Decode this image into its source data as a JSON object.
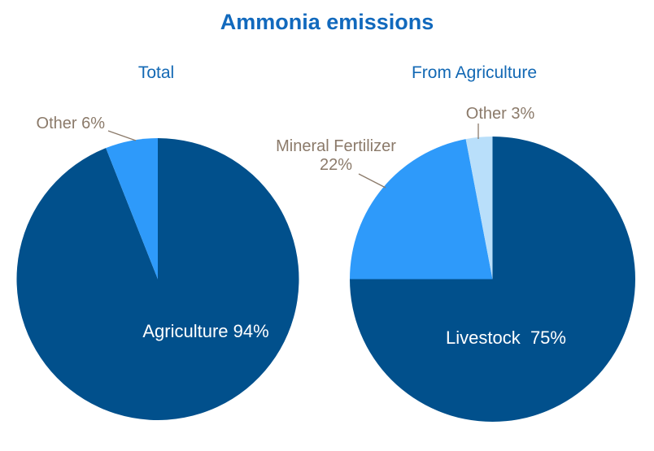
{
  "title": "Ammonia emissions",
  "colors": {
    "title-text": "#1169BD",
    "subtitle-text": "#1268B4",
    "callout-text": "#8B7A6A",
    "leader-line": "#8B7A6A",
    "inside-label-text": "#FFFFFF",
    "background": "#FFFFFF",
    "pie-dark-blue": "#01508C",
    "pie-medium-blue": "#2E9AFA",
    "pie-pale-blue": "#B9DFFA"
  },
  "chart_data": [
    {
      "type": "pie",
      "title": "Total",
      "legend": "none",
      "start_angle_deg": 0,
      "direction": "clockwise",
      "categories": [
        "Agriculture",
        "Other"
      ],
      "values": [
        94,
        6
      ],
      "slices": [
        {
          "label": "Agriculture",
          "value_pct": 94,
          "color": "#01508C",
          "display": "Agriculture 94%",
          "label_placement": "inside"
        },
        {
          "label": "Other",
          "value_pct": 6,
          "color": "#2E9AFA",
          "display": "Other 6%",
          "label_placement": "callout"
        }
      ]
    },
    {
      "type": "pie",
      "title": "From Agriculture",
      "legend": "none",
      "start_angle_deg": 0,
      "direction": "clockwise",
      "categories": [
        "Livestock",
        "Mineral Fertilizer",
        "Other"
      ],
      "values": [
        75,
        22,
        3
      ],
      "slices": [
        {
          "label": "Livestock",
          "value_pct": 75,
          "color": "#01508C",
          "display": "Livestock  75%",
          "label_placement": "inside"
        },
        {
          "label": "Mineral Fertilizer",
          "value_pct": 22,
          "color": "#2E9AFA",
          "display_line1": "Mineral Fertilizer",
          "display_line2": "22%",
          "label_placement": "callout"
        },
        {
          "label": "Other",
          "value_pct": 3,
          "color": "#B9DFFA",
          "display": "Other 3%",
          "label_placement": "callout"
        }
      ]
    }
  ]
}
